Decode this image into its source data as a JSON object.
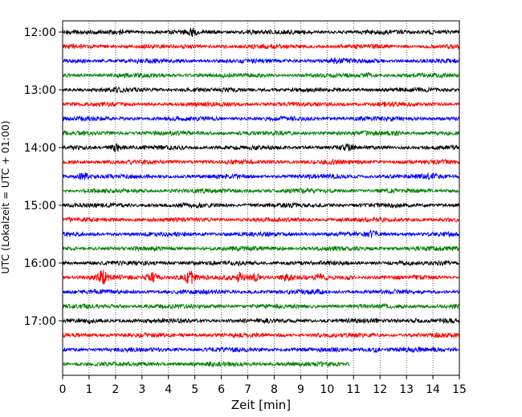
{
  "chart_data": {
    "type": "line",
    "xlabel": "Zeit  [min]",
    "ylabel": "UTC (Lokalzeit = UTC + 01:00)",
    "xlim": [
      0,
      15
    ],
    "x_ticks": [
      0,
      1,
      2,
      3,
      4,
      5,
      6,
      7,
      8,
      9,
      10,
      11,
      12,
      13,
      14,
      15
    ],
    "x_tick_labels": [
      "0",
      "1",
      "2",
      "3",
      "4",
      "5",
      "6",
      "7",
      "8",
      "9",
      "10",
      "11",
      "12",
      "13",
      "14",
      "15"
    ],
    "y_tick_labels": [
      "12:00",
      "13:00",
      "14:00",
      "15:00",
      "16:00",
      "17:00"
    ],
    "grid": "vertical-dotted",
    "colors": [
      "#000000",
      "#ff0000",
      "#0000ff",
      "#008000"
    ],
    "series": [
      {
        "start": "12:00",
        "end_min": 15,
        "color": "#000000",
        "bursts": [
          {
            "t": 2.2,
            "a": 1.6
          },
          {
            "t": 4.9,
            "a": 1.8
          },
          {
            "t": 7.1,
            "a": 1.3
          },
          {
            "t": 13.9,
            "a": 1.4
          }
        ]
      },
      {
        "start": "12:15",
        "end_min": 15,
        "color": "#ff0000",
        "bursts": [
          {
            "t": 9.0,
            "a": 1.2
          }
        ]
      },
      {
        "start": "12:30",
        "end_min": 15,
        "color": "#0000ff",
        "bursts": [
          {
            "t": 10.3,
            "a": 1.3
          }
        ]
      },
      {
        "start": "12:45",
        "end_min": 15,
        "color": "#008000",
        "bursts": [
          {
            "t": 11.5,
            "a": 1.4
          }
        ]
      },
      {
        "start": "13:00",
        "end_min": 15,
        "color": "#000000",
        "bursts": [
          {
            "t": 2.0,
            "a": 1.4
          },
          {
            "t": 5.0,
            "a": 1.2
          }
        ]
      },
      {
        "start": "13:15",
        "end_min": 15,
        "color": "#ff0000",
        "bursts": [
          {
            "t": 12.3,
            "a": 1.3
          }
        ]
      },
      {
        "start": "13:30",
        "end_min": 15,
        "color": "#0000ff",
        "bursts": [
          {
            "t": 11.2,
            "a": 1.2
          }
        ]
      },
      {
        "start": "13:45",
        "end_min": 15,
        "color": "#008000",
        "bursts": [
          {
            "t": 12.6,
            "a": 1.4
          }
        ]
      },
      {
        "start": "14:00",
        "end_min": 15,
        "color": "#000000",
        "bursts": [
          {
            "t": 2.0,
            "a": 2.2
          },
          {
            "t": 10.8,
            "a": 1.6
          }
        ]
      },
      {
        "start": "14:15",
        "end_min": 15,
        "color": "#ff0000",
        "bursts": [
          {
            "t": 10.3,
            "a": 1.3
          }
        ]
      },
      {
        "start": "14:30",
        "end_min": 15,
        "color": "#0000ff",
        "bursts": [
          {
            "t": 0.8,
            "a": 2.0
          },
          {
            "t": 14.0,
            "a": 1.7
          }
        ]
      },
      {
        "start": "14:45",
        "end_min": 15,
        "color": "#008000",
        "bursts": [
          {
            "t": 4.2,
            "a": 1.1
          }
        ]
      },
      {
        "start": "15:00",
        "end_min": 15,
        "color": "#000000",
        "bursts": [
          {
            "t": 7.0,
            "a": 1.1
          }
        ]
      },
      {
        "start": "15:15",
        "end_min": 15,
        "color": "#ff0000",
        "bursts": [
          {
            "t": 2.0,
            "a": 1.1
          }
        ]
      },
      {
        "start": "15:30",
        "end_min": 15,
        "color": "#0000ff",
        "bursts": [
          {
            "t": 11.7,
            "a": 1.7
          }
        ]
      },
      {
        "start": "15:45",
        "end_min": 15,
        "color": "#008000",
        "bursts": [
          {
            "t": 8.2,
            "a": 1.2
          },
          {
            "t": 13.5,
            "a": 1.1
          }
        ]
      },
      {
        "start": "16:00",
        "end_min": 15,
        "color": "#000000",
        "bursts": [
          {
            "t": 5.0,
            "a": 1.2
          }
        ]
      },
      {
        "start": "16:15",
        "end_min": 15,
        "color": "#ff0000",
        "bursts": [
          {
            "t": 1.5,
            "a": 2.8
          },
          {
            "t": 3.4,
            "a": 2.3
          },
          {
            "t": 4.8,
            "a": 3.0
          },
          {
            "t": 6.7,
            "a": 2.3
          },
          {
            "t": 7.3,
            "a": 2.0
          },
          {
            "t": 8.5,
            "a": 2.0
          },
          {
            "t": 9.7,
            "a": 1.6
          },
          {
            "t": 10.8,
            "a": 1.3
          }
        ]
      },
      {
        "start": "16:30",
        "end_min": 15,
        "color": "#0000ff",
        "bursts": [
          {
            "t": 9.6,
            "a": 1.4
          }
        ]
      },
      {
        "start": "16:45",
        "end_min": 15,
        "color": "#008000",
        "bursts": [
          {
            "t": 14.8,
            "a": 1.2
          }
        ]
      },
      {
        "start": "17:00",
        "end_min": 15,
        "color": "#000000",
        "bursts": [
          {
            "t": 1.0,
            "a": 1.3
          },
          {
            "t": 13.3,
            "a": 1.3
          }
        ]
      },
      {
        "start": "17:15",
        "end_min": 15,
        "color": "#ff0000",
        "bursts": [
          {
            "t": 14.2,
            "a": 1.3
          }
        ]
      },
      {
        "start": "17:30",
        "end_min": 15,
        "color": "#0000ff",
        "bursts": [
          {
            "t": 11.8,
            "a": 1.6
          },
          {
            "t": 12.8,
            "a": 1.4
          },
          {
            "t": 13.4,
            "a": 1.2
          }
        ]
      },
      {
        "start": "17:45",
        "end_min": 10.85,
        "color": "#008000",
        "bursts": [
          {
            "t": 6.5,
            "a": 1.1
          }
        ]
      }
    ]
  }
}
